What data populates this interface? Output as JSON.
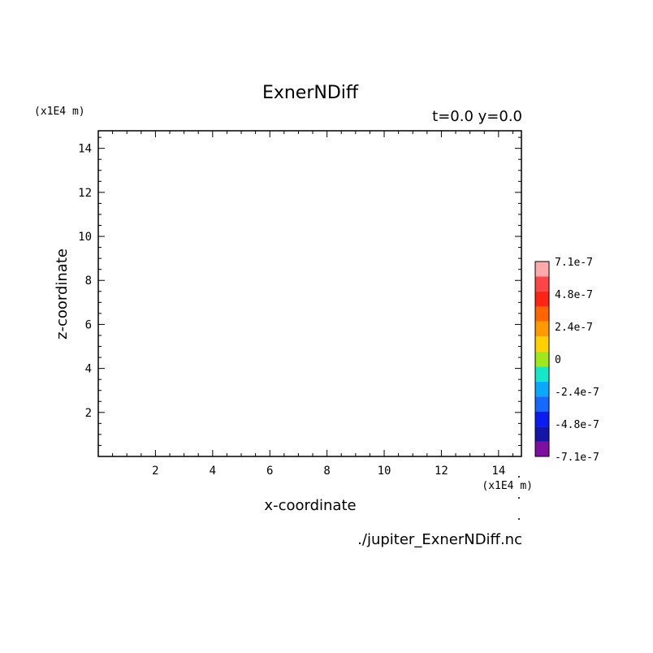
{
  "chart_data": {
    "type": "heatmap",
    "title": "ExnerNDiff",
    "subtitle": "t=0.0 y=0.0",
    "xlabel": "x-coordinate",
    "ylabel": "z-coordinate",
    "x_unit": "(x1E4 m)",
    "y_unit": "(x1E4 m)",
    "xlim": [
      0,
      14.8
    ],
    "ylim": [
      0,
      14.8
    ],
    "x_ticks": [
      2,
      4,
      6,
      8,
      10,
      12,
      14
    ],
    "y_ticks": [
      2,
      4,
      6,
      8,
      10,
      12,
      14
    ],
    "x_tick_labels": [
      "2",
      "4",
      "6",
      "8",
      "10",
      "12",
      "14"
    ],
    "y_tick_labels": [
      "2",
      "4",
      "6",
      "8",
      "10",
      "12",
      "14"
    ],
    "grid": false,
    "source_file": "./jupiter_ExnerNDiff.nc",
    "colorbar": {
      "colors": [
        "#7f0f9e",
        "#1515a8",
        "#0a1cf0",
        "#1668ff",
        "#0aa8ff",
        "#14e8c8",
        "#9ee81c",
        "#ffd000",
        "#ff9a00",
        "#ff6600",
        "#ff2414",
        "#ff4646",
        "#ffaaaa"
      ],
      "labels": [
        "-7.1e-7",
        "-4.8e-7",
        "-2.4e-7",
        "0",
        "2.4e-7",
        "4.8e-7",
        "7.1e-7"
      ]
    }
  }
}
